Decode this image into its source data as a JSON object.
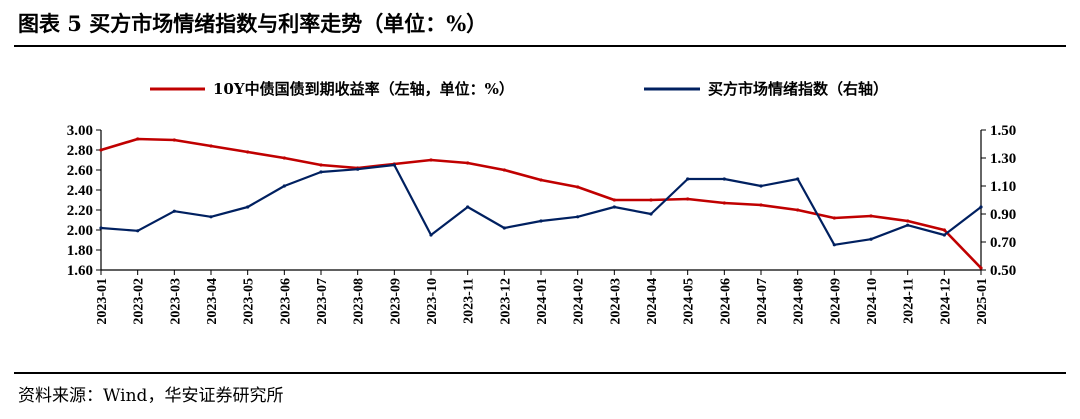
{
  "figure": {
    "title": "图表 5  买方市场情绪指数与利率走势（单位：%）",
    "source": "资料来源：Wind，华安证券研究所"
  },
  "colors": {
    "series1": "#c00000",
    "series2": "#002060",
    "axis": "#000000"
  },
  "chart_data": {
    "type": "line",
    "title": "买方市场情绪指数与利率走势（单位：%）",
    "x_range": [
      "2023-01",
      "2025-01"
    ],
    "x_tick_labels": [
      "2023-01",
      "2023-02",
      "2023-03",
      "2023-04",
      "2023-05",
      "2023-06",
      "2023-07",
      "2023-08",
      "2023-09",
      "2023-10",
      "2023-11",
      "2023-12",
      "2024-01",
      "2024-02",
      "2024-03",
      "2024-04",
      "2024-05",
      "2024-06",
      "2024-07",
      "2024-08",
      "2024-09",
      "2024-10",
      "2024-11",
      "2024-12",
      "2025-01"
    ],
    "y_left": {
      "min": 1.6,
      "max": 3.0,
      "ticks": [
        "3.00",
        "2.80",
        "2.60",
        "2.40",
        "2.20",
        "2.00",
        "1.80",
        "1.60"
      ]
    },
    "y_right": {
      "min": 0.5,
      "max": 1.5,
      "ticks": [
        "1.50",
        "1.30",
        "1.10",
        "0.90",
        "0.70",
        "0.50"
      ]
    },
    "legend": {
      "position": "top"
    },
    "series": [
      {
        "name": "10Y中债国债到期收益率（左轴，单位：%）",
        "axis": "left",
        "color": "#c00000",
        "x": [
          "2023-01",
          "2023-02",
          "2023-03",
          "2023-04",
          "2023-05",
          "2023-06",
          "2023-07",
          "2023-08",
          "2023-09",
          "2023-10",
          "2023-11",
          "2023-12",
          "2024-01",
          "2024-02",
          "2024-03",
          "2024-04",
          "2024-05",
          "2024-06",
          "2024-07",
          "2024-08",
          "2024-09",
          "2024-10",
          "2024-11",
          "2024-12",
          "2025-01"
        ],
        "values": [
          2.8,
          2.91,
          2.9,
          2.84,
          2.78,
          2.72,
          2.65,
          2.62,
          2.66,
          2.7,
          2.67,
          2.6,
          2.5,
          2.43,
          2.3,
          2.3,
          2.31,
          2.27,
          2.25,
          2.2,
          2.12,
          2.14,
          2.09,
          2.0,
          1.62
        ]
      },
      {
        "name": "买方市场情绪指数（右轴）",
        "axis": "right",
        "color": "#002060",
        "x": [
          "2023-01",
          "2023-02",
          "2023-03",
          "2023-04",
          "2023-05",
          "2023-06",
          "2023-07",
          "2023-08",
          "2023-09",
          "2023-10",
          "2023-11",
          "2023-12",
          "2024-01",
          "2024-02",
          "2024-03",
          "2024-04",
          "2024-05",
          "2024-06",
          "2024-07",
          "2024-08",
          "2024-09",
          "2024-10",
          "2024-11",
          "2024-12",
          "2025-01"
        ],
        "values": [
          0.8,
          0.78,
          0.92,
          0.88,
          0.95,
          1.1,
          1.2,
          1.22,
          1.25,
          0.75,
          0.95,
          0.8,
          0.85,
          0.88,
          0.95,
          0.9,
          1.15,
          1.15,
          1.1,
          1.15,
          0.68,
          0.72,
          0.82,
          0.75,
          0.95
        ]
      }
    ]
  }
}
